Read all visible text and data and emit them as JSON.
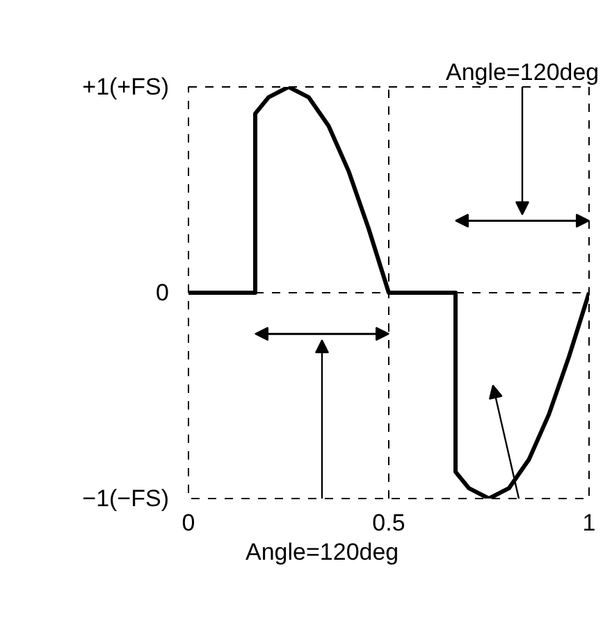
{
  "chart_data": {
    "type": "line",
    "x": [
      0,
      0.1667,
      0.1667,
      0.2,
      0.25,
      0.3,
      0.35,
      0.4,
      0.45,
      0.5,
      0.6667,
      0.6667,
      0.7,
      0.75,
      0.8,
      0.85,
      0.9,
      0.95,
      1
    ],
    "series": [
      {
        "color": "#000000",
        "values": [
          0,
          0,
          0.87,
          0.95,
          1,
          0.95,
          0.81,
          0.59,
          0.31,
          0,
          0,
          -0.87,
          -0.95,
          -1,
          -0.95,
          -0.81,
          -0.59,
          -0.31,
          0
        ]
      }
    ],
    "xlim": [
      0,
      1
    ],
    "ylim": [
      -1,
      1
    ],
    "xticks": [
      0,
      0.5,
      1
    ],
    "yticks": [
      {
        "value": -1,
        "label": "−1(−FS)"
      },
      0,
      {
        "value": 1,
        "label": "+1(+FS)"
      }
    ],
    "grid": true,
    "line_style": "solid",
    "marker": "none",
    "annotations": [
      "Angle=120deg",
      "Angle=120deg"
    ]
  }
}
